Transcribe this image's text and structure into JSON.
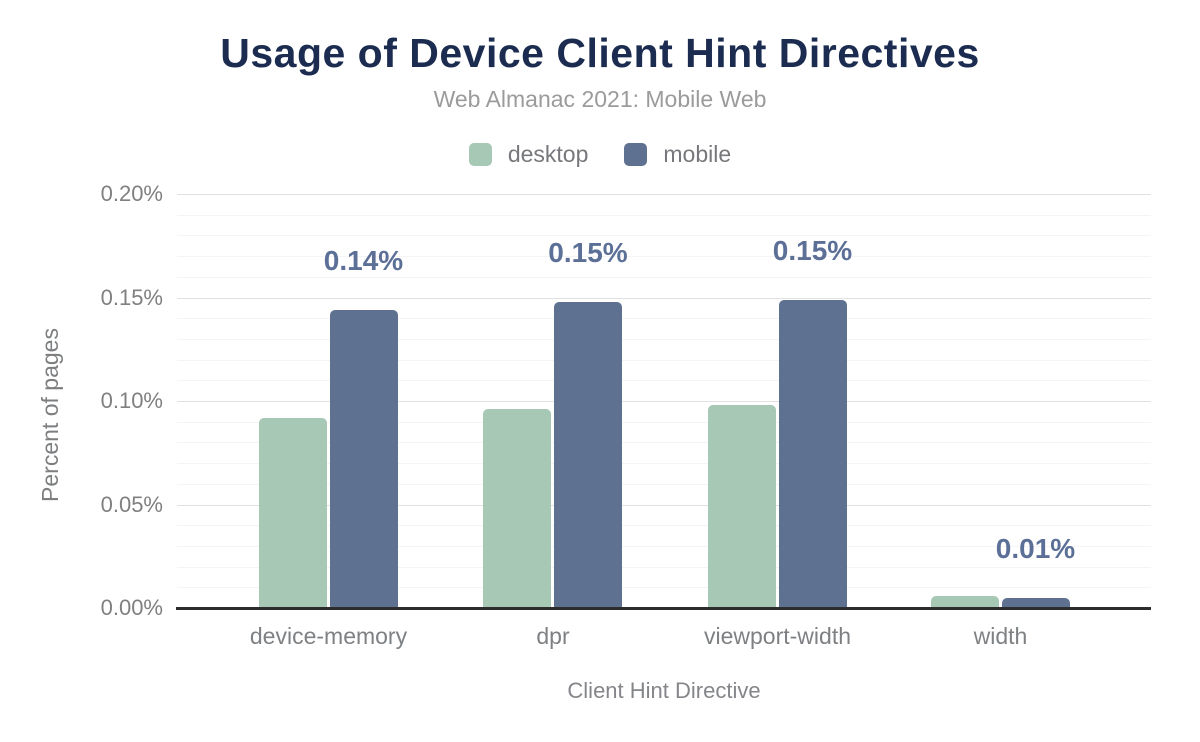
{
  "chart_data": {
    "type": "bar",
    "title": "Usage of Device Client Hint Directives",
    "subtitle": "Web Almanac 2021: Mobile Web",
    "categories": [
      "device-memory",
      "dpr",
      "viewport-width",
      "width"
    ],
    "series": [
      {
        "name": "desktop",
        "color": "#a6c8b5",
        "values": [
          0.092,
          0.096,
          0.098,
          0.006
        ]
      },
      {
        "name": "mobile",
        "color": "#5e7190",
        "values": [
          0.144,
          0.148,
          0.149,
          0.005
        ]
      }
    ],
    "bar_value_labels": {
      "series": "mobile",
      "labels": [
        "0.14%",
        "0.15%",
        "0.15%",
        "0.01%"
      ],
      "color": "#5c7097"
    },
    "xlabel": "Client Hint Directive",
    "ylabel": "Percent of pages",
    "ylim": [
      0,
      0.2
    ],
    "yticks": [
      "0.00%",
      "0.05%",
      "0.10%",
      "0.15%",
      "0.20%"
    ],
    "ytick_values": [
      0,
      0.05,
      0.1,
      0.15,
      0.2
    ],
    "minor_grid_step": 0.01,
    "grid": true,
    "legend_position": "top",
    "title_color": "#1b2c50",
    "axis_line_color": "#2d2d2d"
  }
}
